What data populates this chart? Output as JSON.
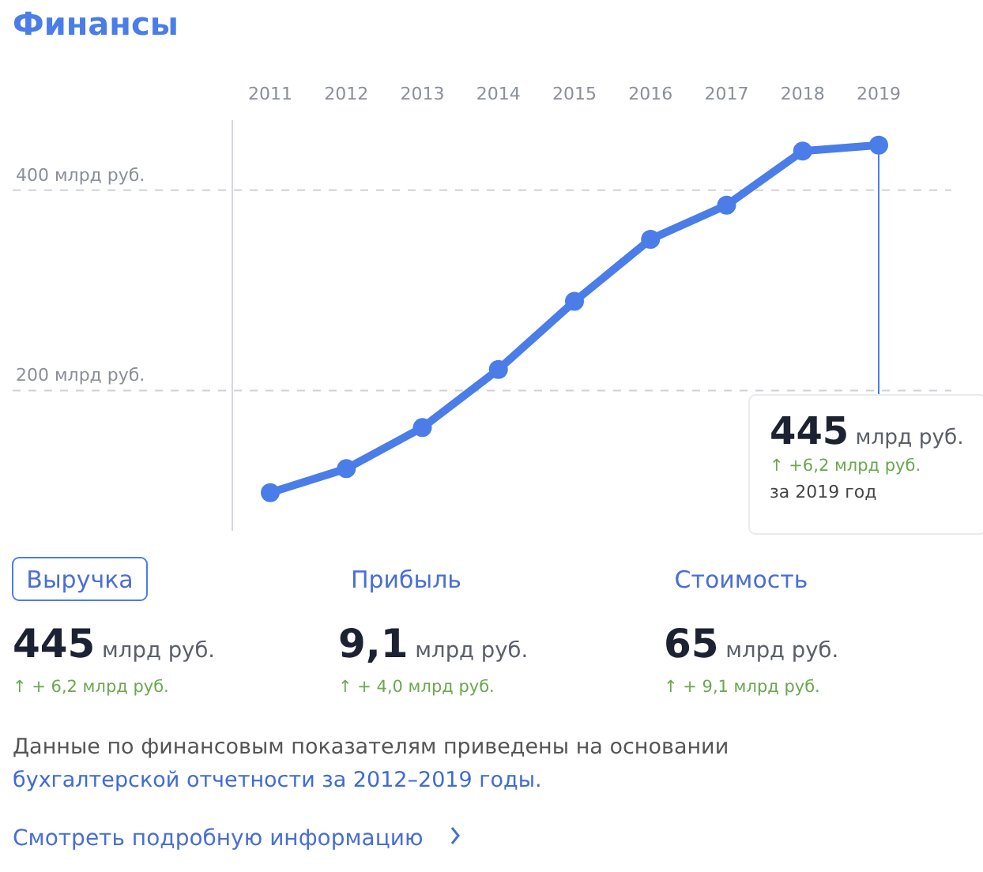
{
  "chart_data": {
    "type": "line",
    "title": "Финансы",
    "categories": [
      "2011",
      "2012",
      "2013",
      "2014",
      "2015",
      "2016",
      "2017",
      "2018",
      "2019"
    ],
    "series": [
      {
        "color": "#4a7de8",
        "values": [
          98,
          122,
          163,
          221,
          289,
          351,
          385,
          439,
          445
        ]
      }
    ],
    "ylim": [
      60,
      470
    ],
    "yticks": [
      {
        "value": 200,
        "label": "200 млрд руб."
      },
      {
        "value": 400,
        "label": "400 млрд руб."
      }
    ],
    "grid": "y",
    "marker": "circle",
    "line_style": "solid",
    "annotations": [
      {
        "text": "445 млрд руб.",
        "x": "2019",
        "y": 445
      },
      "↑ +6,2 млрд руб.",
      "за 2019 год",
      "Выручка",
      "445 млрд руб.",
      "↑ + 6,2 млрд руб.",
      "Прибыль",
      "9,1 млрд руб.",
      "↑ + 4,0 млрд руб.",
      "Стоимость",
      "65 млрд руб.",
      "↑ + 9,1 млрд руб.",
      "Данные по финансовым показателям приведены на основании",
      "бухгалтерской отчетности за 2012–2019 годы.",
      "Смотреть подробную информацию"
    ]
  }
}
